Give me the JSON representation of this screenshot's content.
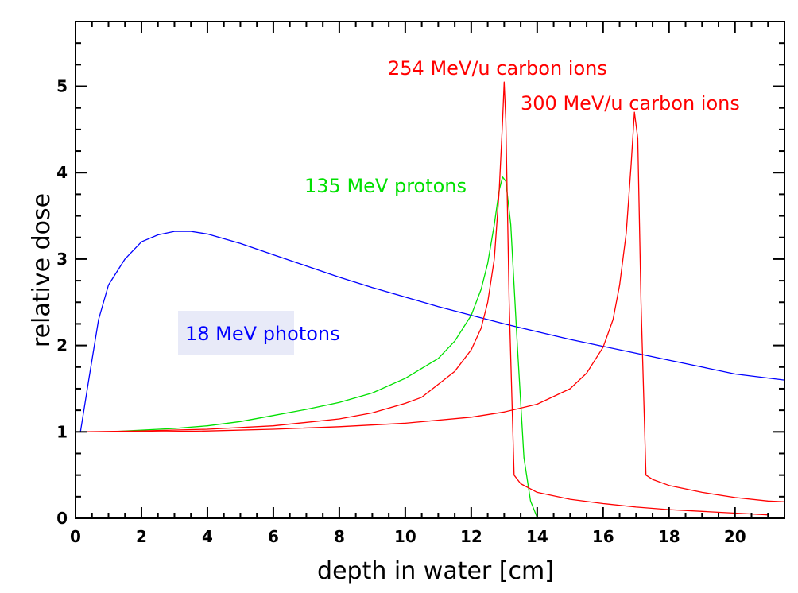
{
  "chart_data": {
    "type": "line",
    "title": "",
    "xlabel": "depth in water [cm]",
    "ylabel": "relative dose",
    "xlim": [
      0,
      21.5
    ],
    "ylim": [
      0,
      5.75
    ],
    "x_ticks": [
      "0",
      "2",
      "4",
      "6",
      "8",
      "10",
      "12",
      "14",
      "16",
      "18",
      "20"
    ],
    "y_ticks": [
      "0",
      "1",
      "2",
      "3",
      "4",
      "5"
    ],
    "grid": false,
    "legend": "none",
    "series": [
      {
        "name": "18 MeV photons",
        "color": "#0000ff",
        "label_background": "#e8eaf8",
        "points": [
          [
            0.15,
            1.0
          ],
          [
            0.4,
            1.6
          ],
          [
            0.7,
            2.3
          ],
          [
            1.0,
            2.7
          ],
          [
            1.5,
            3.0
          ],
          [
            2.0,
            3.2
          ],
          [
            2.5,
            3.28
          ],
          [
            3.0,
            3.32
          ],
          [
            3.5,
            3.32
          ],
          [
            4.0,
            3.29
          ],
          [
            5.0,
            3.18
          ],
          [
            6.0,
            3.05
          ],
          [
            7.0,
            2.92
          ],
          [
            8.0,
            2.79
          ],
          [
            9.0,
            2.67
          ],
          [
            10.0,
            2.56
          ],
          [
            11.0,
            2.45
          ],
          [
            12.0,
            2.35
          ],
          [
            13.0,
            2.25
          ],
          [
            14.0,
            2.16
          ],
          [
            15.0,
            2.07
          ],
          [
            16.0,
            1.99
          ],
          [
            17.0,
            1.91
          ],
          [
            18.0,
            1.83
          ],
          [
            19.0,
            1.75
          ],
          [
            20.0,
            1.67
          ],
          [
            21.5,
            1.6
          ]
        ]
      },
      {
        "name": "135 MeV protons",
        "color": "#00e000",
        "points": [
          [
            0.15,
            1.0
          ],
          [
            1.0,
            1.0
          ],
          [
            2.0,
            1.02
          ],
          [
            3.0,
            1.04
          ],
          [
            4.0,
            1.07
          ],
          [
            5.0,
            1.12
          ],
          [
            6.0,
            1.19
          ],
          [
            7.0,
            1.26
          ],
          [
            8.0,
            1.34
          ],
          [
            9.0,
            1.45
          ],
          [
            10.0,
            1.62
          ],
          [
            11.0,
            1.85
          ],
          [
            11.5,
            2.05
          ],
          [
            12.0,
            2.35
          ],
          [
            12.3,
            2.65
          ],
          [
            12.5,
            2.95
          ],
          [
            12.7,
            3.4
          ],
          [
            12.85,
            3.8
          ],
          [
            12.95,
            3.95
          ],
          [
            13.05,
            3.9
          ],
          [
            13.2,
            3.4
          ],
          [
            13.4,
            2.0
          ],
          [
            13.6,
            0.7
          ],
          [
            13.8,
            0.2
          ],
          [
            14.0,
            0.01
          ]
        ]
      },
      {
        "name": "254 MeV/u carbon ions",
        "color": "#ff0000",
        "points": [
          [
            0.15,
            1.0
          ],
          [
            2.0,
            1.01
          ],
          [
            4.0,
            1.03
          ],
          [
            6.0,
            1.07
          ],
          [
            8.0,
            1.15
          ],
          [
            9.0,
            1.22
          ],
          [
            10.0,
            1.33
          ],
          [
            10.5,
            1.4
          ],
          [
            11.0,
            1.55
          ],
          [
            11.5,
            1.7
          ],
          [
            12.0,
            1.95
          ],
          [
            12.3,
            2.2
          ],
          [
            12.5,
            2.5
          ],
          [
            12.7,
            3.0
          ],
          [
            12.85,
            3.8
          ],
          [
            12.95,
            4.6
          ],
          [
            13.0,
            5.05
          ],
          [
            13.05,
            4.6
          ],
          [
            13.15,
            2.5
          ],
          [
            13.3,
            0.5
          ],
          [
            13.5,
            0.4
          ],
          [
            14.0,
            0.3
          ],
          [
            15.0,
            0.22
          ],
          [
            16.0,
            0.17
          ],
          [
            17.0,
            0.13
          ],
          [
            18.0,
            0.1
          ],
          [
            19.0,
            0.08
          ],
          [
            20.0,
            0.06
          ],
          [
            21.0,
            0.04
          ]
        ]
      },
      {
        "name": "300 MeV/u carbon ions",
        "color": "#ff0000",
        "points": [
          [
            0.15,
            1.0
          ],
          [
            2.0,
            1.0
          ],
          [
            4.0,
            1.01
          ],
          [
            6.0,
            1.03
          ],
          [
            8.0,
            1.06
          ],
          [
            10.0,
            1.1
          ],
          [
            12.0,
            1.17
          ],
          [
            13.0,
            1.23
          ],
          [
            14.0,
            1.32
          ],
          [
            15.0,
            1.5
          ],
          [
            15.5,
            1.68
          ],
          [
            16.0,
            1.98
          ],
          [
            16.3,
            2.3
          ],
          [
            16.5,
            2.7
          ],
          [
            16.7,
            3.3
          ],
          [
            16.85,
            4.1
          ],
          [
            16.95,
            4.7
          ],
          [
            17.05,
            4.4
          ],
          [
            17.15,
            2.5
          ],
          [
            17.3,
            0.5
          ],
          [
            17.5,
            0.45
          ],
          [
            18.0,
            0.38
          ],
          [
            19.0,
            0.3
          ],
          [
            20.0,
            0.24
          ],
          [
            21.0,
            0.2
          ],
          [
            21.5,
            0.19
          ]
        ]
      }
    ]
  }
}
